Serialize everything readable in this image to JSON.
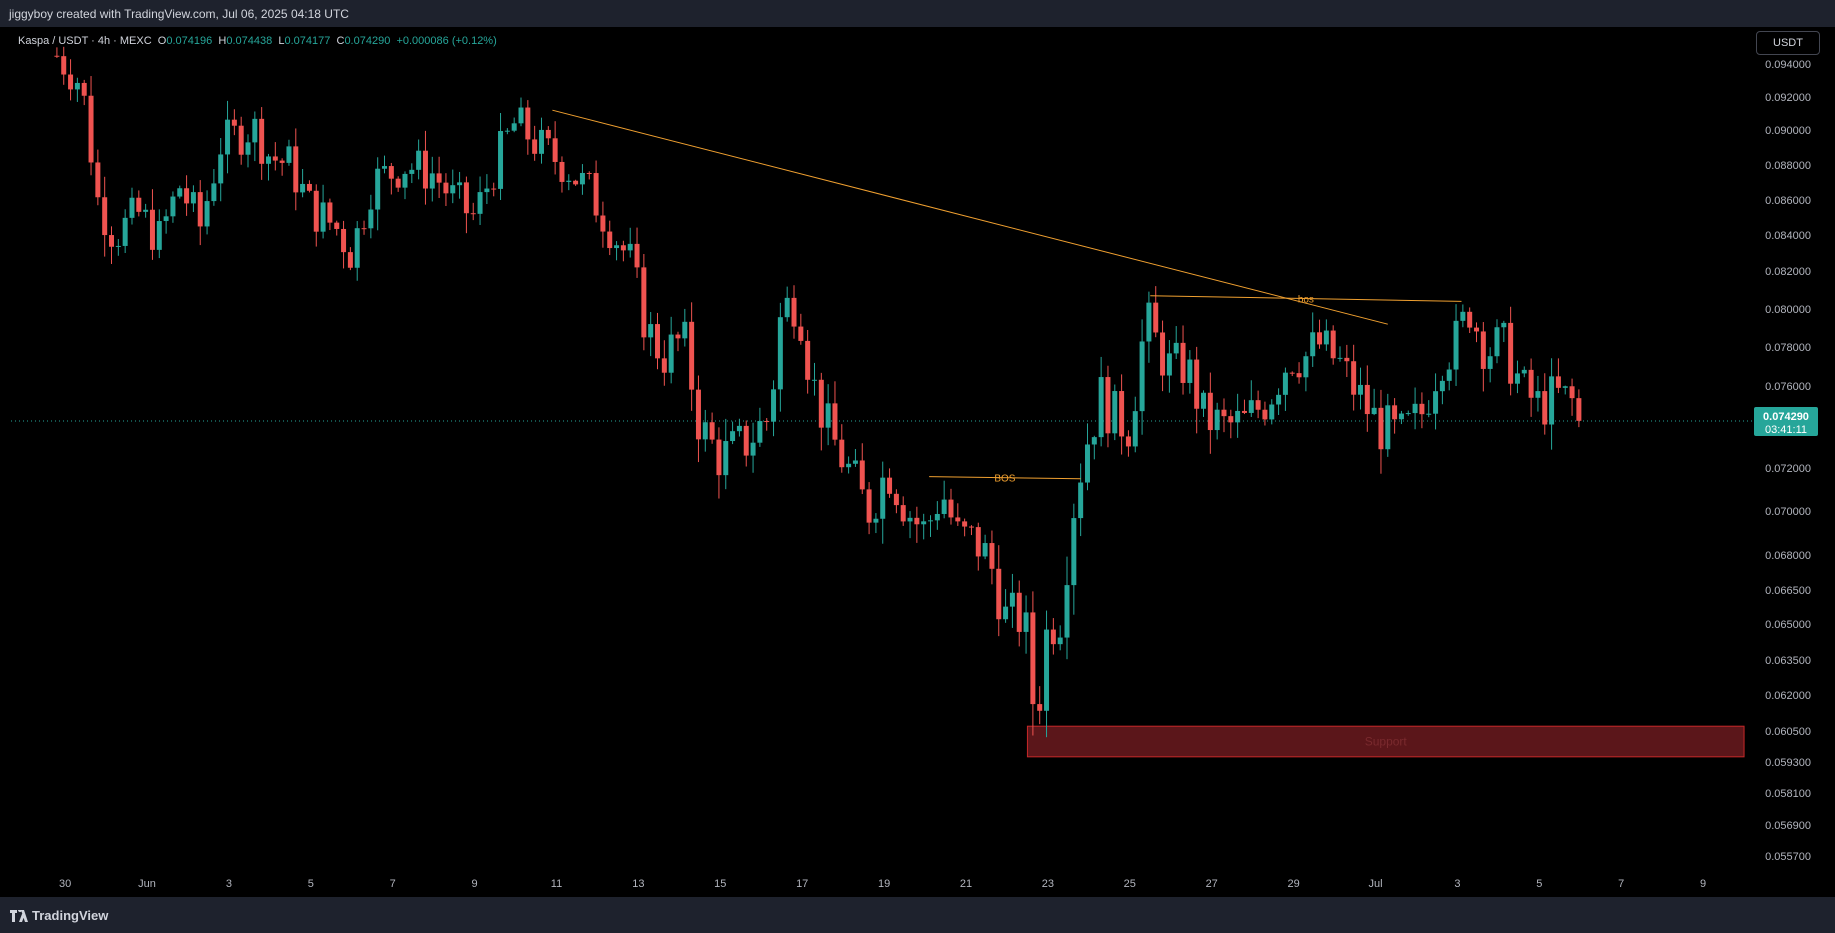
{
  "header": {
    "attribution": "jiggyboy created with TradingView.com, Jul 06, 2025 04:18 UTC"
  },
  "legend": {
    "symbol": "Kaspa / USDT · 4h · MEXC",
    "o_label": "O",
    "o_value": "0.074196",
    "h_label": "H",
    "h_value": "0.074438",
    "l_label": "L",
    "l_value": "0.074177",
    "c_label": "C",
    "c_value": "0.074290",
    "change": "+0.000086 (+0.12%)"
  },
  "currency_button": "USDT",
  "footer": {
    "brand": "TradingView"
  },
  "colors": {
    "up": "#26a69a",
    "down": "#ef5350",
    "trendline": "#f0a030",
    "support_fill": "#6b1a1f",
    "support_border": "#c62828",
    "last_price_bg": "#26a69a"
  },
  "chart_data": {
    "type": "candlestick",
    "title": "Kaspa / USDT · 4h · MEXC",
    "last_price": {
      "price": 0.07429,
      "label": "0.074290",
      "countdown": "03:41:11"
    },
    "y_ticks": [
      {
        "value": 0.094,
        "label": "0.094000"
      },
      {
        "value": 0.092,
        "label": "0.092000"
      },
      {
        "value": 0.09,
        "label": "0.090000"
      },
      {
        "value": 0.088,
        "label": "0.088000"
      },
      {
        "value": 0.086,
        "label": "0.086000"
      },
      {
        "value": 0.084,
        "label": "0.084000"
      },
      {
        "value": 0.082,
        "label": "0.082000"
      },
      {
        "value": 0.08,
        "label": "0.080000"
      },
      {
        "value": 0.078,
        "label": "0.078000"
      },
      {
        "value": 0.076,
        "label": "0.076000"
      },
      {
        "value": 0.072,
        "label": "0.072000"
      },
      {
        "value": 0.07,
        "label": "0.070000"
      },
      {
        "value": 0.068,
        "label": "0.068000"
      },
      {
        "value": 0.0665,
        "label": "0.066500"
      },
      {
        "value": 0.065,
        "label": "0.065000"
      },
      {
        "value": 0.0635,
        "label": "0.063500"
      },
      {
        "value": 0.062,
        "label": "0.062000"
      },
      {
        "value": 0.0605,
        "label": "0.060500"
      },
      {
        "value": 0.0593,
        "label": "0.059300"
      },
      {
        "value": 0.0581,
        "label": "0.058100"
      },
      {
        "value": 0.0569,
        "label": "0.056900"
      },
      {
        "value": 0.0557,
        "label": "0.055700"
      }
    ],
    "x_ticks": [
      {
        "day": -1,
        "label": "30"
      },
      {
        "day": 1,
        "label": "Jun"
      },
      {
        "day": 3,
        "label": "3"
      },
      {
        "day": 5,
        "label": "5"
      },
      {
        "day": 7,
        "label": "7"
      },
      {
        "day": 9,
        "label": "9"
      },
      {
        "day": 11,
        "label": "11"
      },
      {
        "day": 13,
        "label": "13"
      },
      {
        "day": 15,
        "label": "15"
      },
      {
        "day": 17,
        "label": "17"
      },
      {
        "day": 19,
        "label": "19"
      },
      {
        "day": 21,
        "label": "21"
      },
      {
        "day": 23,
        "label": "23"
      },
      {
        "day": 25,
        "label": "25"
      },
      {
        "day": 27,
        "label": "27"
      },
      {
        "day": 29,
        "label": "29"
      },
      {
        "day": 31,
        "label": "Jul"
      },
      {
        "day": 33,
        "label": "3"
      },
      {
        "day": 35,
        "label": "5"
      },
      {
        "day": 37,
        "label": "7"
      },
      {
        "day": 39,
        "label": "9"
      }
    ],
    "anchors": [
      [
        -1.2,
        0.0945
      ],
      [
        -0.6,
        0.0928
      ],
      [
        -0.2,
        0.086
      ],
      [
        0.2,
        0.084
      ],
      [
        0.8,
        0.0852
      ],
      [
        1.3,
        0.0838
      ],
      [
        1.8,
        0.0868
      ],
      [
        2.3,
        0.0845
      ],
      [
        2.8,
        0.0892
      ],
      [
        3.6,
        0.0902
      ],
      [
        4.0,
        0.0885
      ],
      [
        4.5,
        0.088
      ],
      [
        5.0,
        0.0855
      ],
      [
        5.6,
        0.0845
      ],
      [
        6.0,
        0.083
      ],
      [
        6.5,
        0.087
      ],
      [
        7.3,
        0.088
      ],
      [
        8.0,
        0.0875
      ],
      [
        8.5,
        0.086
      ],
      [
        9.0,
        0.085
      ],
      [
        9.5,
        0.088
      ],
      [
        10.0,
        0.0905
      ],
      [
        10.6,
        0.089
      ],
      [
        11.2,
        0.088
      ],
      [
        11.8,
        0.0865
      ],
      [
        12.3,
        0.0845
      ],
      [
        12.8,
        0.0825
      ],
      [
        13.2,
        0.079
      ],
      [
        13.6,
        0.0775
      ],
      [
        14.1,
        0.0785
      ],
      [
        14.5,
        0.074
      ],
      [
        15.0,
        0.0725
      ],
      [
        15.6,
        0.0732
      ],
      [
        16.2,
        0.0745
      ],
      [
        16.5,
        0.08
      ],
      [
        16.9,
        0.0805
      ],
      [
        17.2,
        0.0765
      ],
      [
        17.6,
        0.074
      ],
      [
        18.1,
        0.072
      ],
      [
        18.6,
        0.07
      ],
      [
        19.1,
        0.072
      ],
      [
        19.6,
        0.07
      ],
      [
        20.0,
        0.069
      ],
      [
        20.4,
        0.071
      ],
      [
        20.8,
        0.0688
      ],
      [
        21.3,
        0.0685
      ],
      [
        21.7,
        0.0672
      ],
      [
        22.0,
        0.065
      ],
      [
        22.4,
        0.0655
      ],
      [
        22.7,
        0.0608
      ],
      [
        23.0,
        0.065
      ],
      [
        23.3,
        0.0655
      ],
      [
        23.6,
        0.07
      ],
      [
        23.9,
        0.073
      ],
      [
        24.3,
        0.0755
      ],
      [
        24.6,
        0.0745
      ],
      [
        25.0,
        0.074
      ],
      [
        25.4,
        0.0795
      ],
      [
        25.9,
        0.077
      ],
      [
        26.4,
        0.077
      ],
      [
        26.8,
        0.0745
      ],
      [
        27.3,
        0.074
      ],
      [
        27.8,
        0.0742
      ],
      [
        28.4,
        0.0755
      ],
      [
        28.9,
        0.0775
      ],
      [
        29.3,
        0.0775
      ],
      [
        29.6,
        0.0782
      ],
      [
        30.1,
        0.0772
      ],
      [
        30.6,
        0.0755
      ],
      [
        31.1,
        0.074
      ],
      [
        31.6,
        0.0735
      ],
      [
        32.1,
        0.0745
      ],
      [
        32.6,
        0.0775
      ],
      [
        32.9,
        0.078
      ],
      [
        33.3,
        0.08
      ],
      [
        33.7,
        0.0778
      ],
      [
        34.1,
        0.0782
      ],
      [
        34.6,
        0.0758
      ],
      [
        35.0,
        0.075
      ],
      [
        35.4,
        0.0755
      ],
      [
        35.8,
        0.0752
      ],
      [
        36.1,
        0.0743
      ]
    ],
    "annotations": [
      {
        "type": "trendline",
        "points": [
          [
            10.9,
            0.0912
          ],
          [
            31.3,
            0.0792
          ]
        ]
      },
      {
        "type": "level",
        "label": "bos",
        "from": [
          25.5,
          0.0807
        ],
        "to": [
          33.1,
          0.0804
        ]
      },
      {
        "type": "level",
        "label": "BOS",
        "from": [
          20.1,
          0.0716
        ],
        "to": [
          23.8,
          0.0715
        ]
      },
      {
        "type": "zone",
        "label": "Support",
        "x_from": 22.5,
        "x_to": 40.0,
        "y_from": 0.0595,
        "y_to": 0.0607
      }
    ]
  }
}
